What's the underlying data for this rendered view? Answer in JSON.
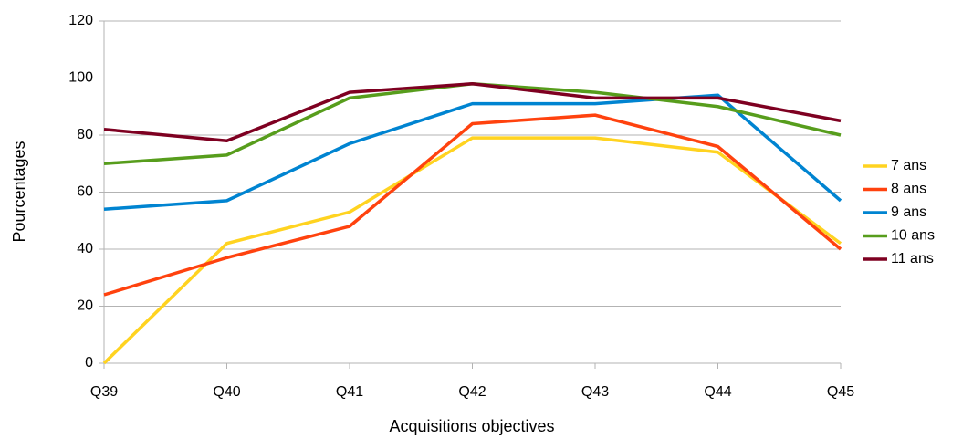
{
  "chart_data": {
    "type": "line",
    "xlabel": "Acquisitions objectives",
    "ylabel": "Pourcentages",
    "categories": [
      "Q39",
      "Q40",
      "Q41",
      "Q42",
      "Q43",
      "Q44",
      "Q45"
    ],
    "series": [
      {
        "name": "7 ans",
        "color": "#ffd320",
        "values": [
          0,
          42,
          53,
          79,
          79,
          74,
          42
        ]
      },
      {
        "name": "8 ans",
        "color": "#ff420e",
        "values": [
          24,
          37,
          48,
          84,
          87,
          76,
          40
        ]
      },
      {
        "name": "9 ans",
        "color": "#0084d1",
        "values": [
          54,
          57,
          77,
          91,
          91,
          94,
          57
        ]
      },
      {
        "name": "10 ans",
        "color": "#579d1c",
        "values": [
          70,
          73,
          93,
          98,
          95,
          90,
          80
        ]
      },
      {
        "name": "11 ans",
        "color": "#7e0021",
        "values": [
          82,
          78,
          95,
          98,
          93,
          93,
          85
        ]
      }
    ],
    "ylim": [
      0,
      120
    ],
    "yticks": [
      0,
      20,
      40,
      60,
      80,
      100,
      120
    ],
    "grid": true,
    "legend": "right"
  }
}
